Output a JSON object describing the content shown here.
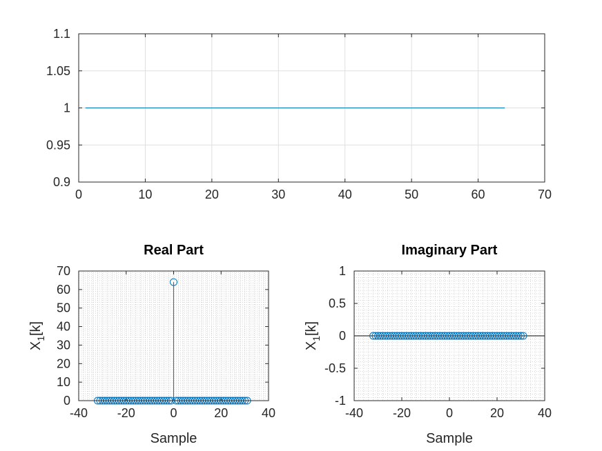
{
  "colors": {
    "series": "#0072bd",
    "axis": "#262626",
    "grid_major": "#dfdfdf",
    "grid_minor": "#bdbdbd",
    "zero_line": "#000000"
  },
  "chart_data": [
    {
      "type": "line",
      "title": "",
      "xlabel": "",
      "ylabel": "",
      "xlim": [
        0,
        70
      ],
      "ylim": [
        0.9,
        1.1
      ],
      "xticks": [
        "0",
        "10",
        "20",
        "30",
        "40",
        "50",
        "60",
        "70"
      ],
      "yticks": [
        "0.9",
        "0.95",
        "1",
        "1.05",
        "1.1"
      ],
      "grid": "major",
      "series": [
        {
          "x": [
            1,
            64
          ],
          "y": [
            1,
            1
          ]
        }
      ]
    },
    {
      "type": "stem",
      "title": "Real Part",
      "xlabel": "Sample",
      "ylabel": "X",
      "ylabel_sub": "1",
      "ylabel_suffix": "[k]",
      "xlim": [
        -40,
        40
      ],
      "ylim": [
        0,
        70
      ],
      "xticks": [
        "-40",
        "-20",
        "0",
        "20",
        "40"
      ],
      "yticks": [
        "0",
        "10",
        "20",
        "30",
        "40",
        "50",
        "60",
        "70"
      ],
      "grid": "minor",
      "series": [
        {
          "x_start": -32,
          "x_end": 31,
          "peak_x": 0,
          "peak_y": 64,
          "baseline_y": 0
        }
      ]
    },
    {
      "type": "stem",
      "title": "Imaginary Part",
      "xlabel": "Sample",
      "ylabel": "X",
      "ylabel_sub": "1",
      "ylabel_suffix": "[k]",
      "xlim": [
        -40,
        40
      ],
      "ylim": [
        -1,
        1
      ],
      "xticks": [
        "-40",
        "-20",
        "0",
        "20",
        "40"
      ],
      "yticks": [
        "-1",
        "-0.5",
        "0",
        "0.5",
        "1"
      ],
      "grid": "minor",
      "series": [
        {
          "x_start": -32,
          "x_end": 31,
          "peak_x": null,
          "peak_y": 0,
          "baseline_y": 0
        }
      ]
    }
  ]
}
